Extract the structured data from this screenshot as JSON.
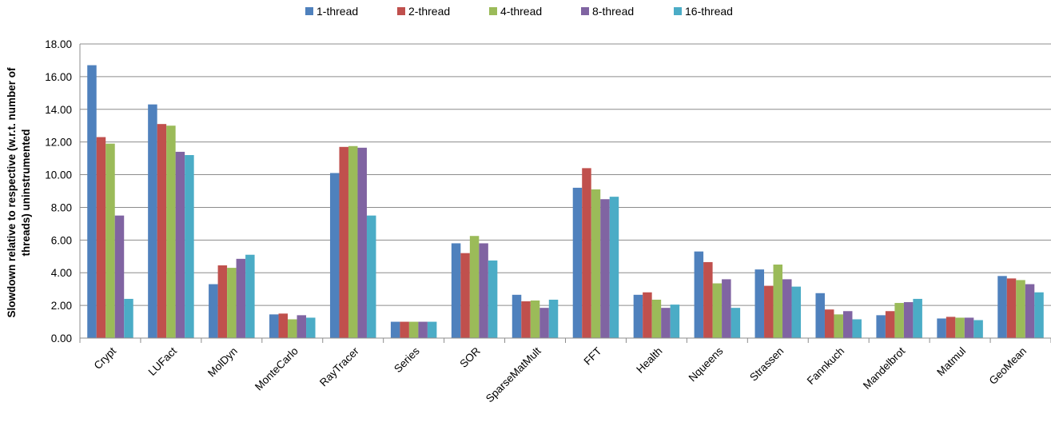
{
  "chart_data": {
    "type": "bar",
    "title": "",
    "xlabel": "",
    "ylabel": [
      "Slowdown relative to respective (w.r.t. number of",
      "threads) uninstrumented"
    ],
    "ylim": [
      0,
      18
    ],
    "yticks": [
      "0.00",
      "2.00",
      "4.00",
      "6.00",
      "8.00",
      "10.00",
      "12.00",
      "14.00",
      "16.00",
      "18.00"
    ],
    "grid": "horizontal",
    "legend_position": "top-center",
    "categories": [
      "Crypt",
      "LUFact",
      "MolDyn",
      "MonteCarlo",
      "RayTracer",
      "Series",
      "SOR",
      "SparseMatMult",
      "FFT",
      "Health",
      "Nqueens",
      "Strassen",
      "Fannkuch",
      "Mandelbrot",
      "Matmul",
      "GeoMean"
    ],
    "series": [
      {
        "name": "1-thread",
        "color": "#4F81BD",
        "values": [
          16.7,
          14.3,
          3.3,
          1.45,
          10.1,
          1.0,
          5.8,
          2.65,
          9.2,
          2.65,
          5.3,
          4.2,
          2.75,
          1.4,
          1.2,
          3.8
        ]
      },
      {
        "name": "2-thread",
        "color": "#C0504D",
        "values": [
          12.3,
          13.1,
          4.45,
          1.5,
          11.7,
          1.0,
          5.2,
          2.25,
          10.4,
          2.8,
          4.65,
          3.2,
          1.75,
          1.65,
          1.3,
          3.65
        ]
      },
      {
        "name": "4-thread",
        "color": "#9BBB59",
        "values": [
          11.9,
          13.0,
          4.3,
          1.15,
          11.75,
          1.0,
          6.25,
          2.3,
          9.1,
          2.35,
          3.35,
          4.5,
          1.45,
          2.15,
          1.25,
          3.55
        ]
      },
      {
        "name": "8-thread",
        "color": "#8064A2",
        "values": [
          7.5,
          11.4,
          4.85,
          1.4,
          11.65,
          1.0,
          5.8,
          1.85,
          8.5,
          1.85,
          3.6,
          3.6,
          1.65,
          2.2,
          1.25,
          3.3
        ]
      },
      {
        "name": "16-thread",
        "color": "#4BACC6",
        "values": [
          2.4,
          11.2,
          5.1,
          1.25,
          7.5,
          1.0,
          4.75,
          2.35,
          8.65,
          2.05,
          1.85,
          3.15,
          1.15,
          2.4,
          1.1,
          2.8
        ]
      }
    ]
  }
}
